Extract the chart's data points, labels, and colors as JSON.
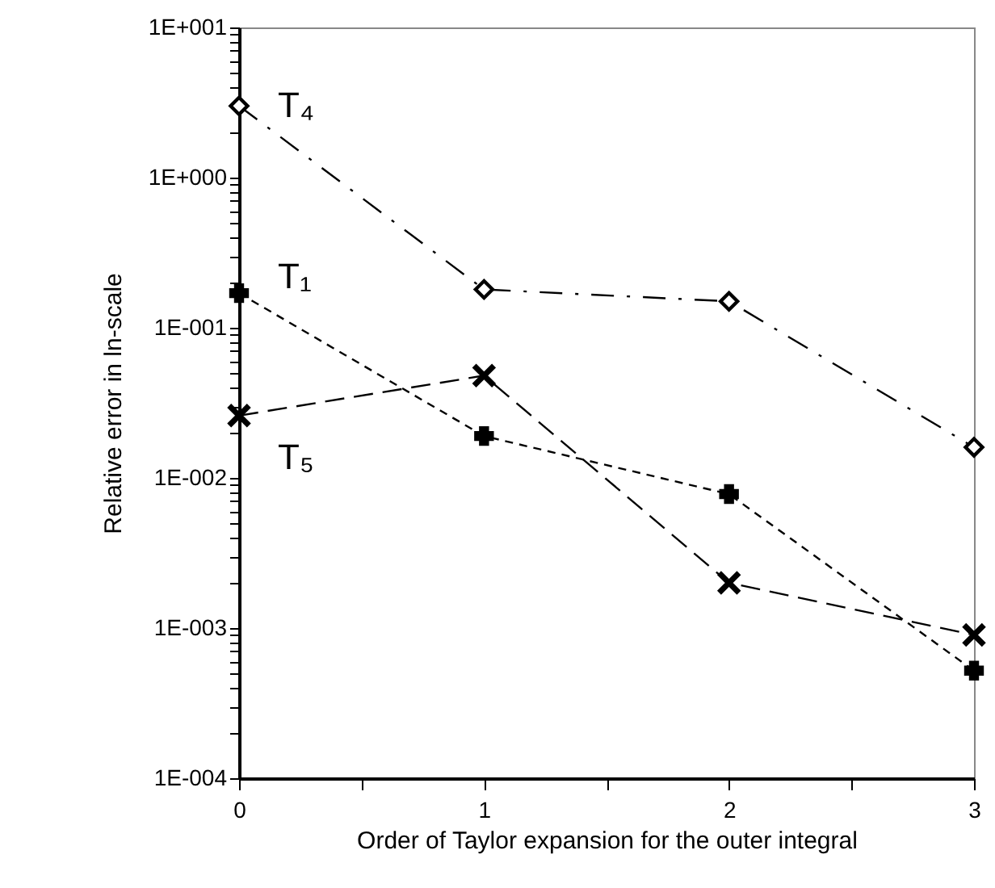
{
  "chart_data": {
    "type": "line",
    "xlabel": "Order of Taylor expansion for the outer integral",
    "ylabel": "Relative error in ln-scale",
    "log": "y",
    "grid": false,
    "x": [
      0,
      1,
      2,
      3
    ],
    "xlim": [
      0,
      3
    ],
    "xticks": [
      0,
      {
        "value": 0.5,
        "label": null
      },
      1,
      {
        "value": 1.5,
        "label": null
      },
      2,
      {
        "value": 2.5,
        "label": null
      },
      3
    ],
    "ylim": [
      0.0001,
      10
    ],
    "yticks": [
      {
        "value": 0.0001,
        "label": "1E-004"
      },
      {
        "value": 0.0002,
        "label": null
      },
      {
        "value": 0.0003,
        "label": null
      },
      {
        "value": 0.0004,
        "label": null
      },
      {
        "value": 0.0005,
        "label": null
      },
      {
        "value": 0.0006,
        "label": null
      },
      {
        "value": 0.0007,
        "label": null
      },
      {
        "value": 0.0008,
        "label": null
      },
      {
        "value": 0.0009,
        "label": null
      },
      {
        "value": 0.001,
        "label": "1E-003"
      },
      {
        "value": 0.002,
        "label": null
      },
      {
        "value": 0.003,
        "label": null
      },
      {
        "value": 0.004,
        "label": null
      },
      {
        "value": 0.005,
        "label": null
      },
      {
        "value": 0.006,
        "label": null
      },
      {
        "value": 0.007,
        "label": null
      },
      {
        "value": 0.008,
        "label": null
      },
      {
        "value": 0.009,
        "label": null
      },
      {
        "value": 0.01,
        "label": "1E-002"
      },
      {
        "value": 0.02,
        "label": null
      },
      {
        "value": 0.03,
        "label": null
      },
      {
        "value": 0.04,
        "label": null
      },
      {
        "value": 0.05,
        "label": null
      },
      {
        "value": 0.06,
        "label": null
      },
      {
        "value": 0.07,
        "label": null
      },
      {
        "value": 0.08,
        "label": null
      },
      {
        "value": 0.09,
        "label": null
      },
      {
        "value": 0.1,
        "label": "1E-001"
      },
      {
        "value": 0.2,
        "label": null
      },
      {
        "value": 0.3,
        "label": null
      },
      {
        "value": 0.4,
        "label": null
      },
      {
        "value": 0.5,
        "label": null
      },
      {
        "value": 0.6,
        "label": null
      },
      {
        "value": 0.7,
        "label": null
      },
      {
        "value": 0.8,
        "label": null
      },
      {
        "value": 0.9,
        "label": null
      },
      {
        "value": 1,
        "label": "1E+000"
      },
      {
        "value": 2,
        "label": null
      },
      {
        "value": 3,
        "label": null
      },
      {
        "value": 4,
        "label": null
      },
      {
        "value": 5,
        "label": null
      },
      {
        "value": 6,
        "label": null
      },
      {
        "value": 7,
        "label": null
      },
      {
        "value": 8,
        "label": null
      },
      {
        "value": 9,
        "label": null
      },
      {
        "value": 10,
        "label": "1E+001"
      }
    ],
    "series": [
      {
        "name": "T₄",
        "color": "#000000",
        "marker": "diamond",
        "line_style": "dashdot",
        "values": [
          3,
          0.18,
          0.15,
          0.016
        ]
      },
      {
        "name": "T₁",
        "color": "#000000",
        "marker": "cross",
        "line_style": "dotted",
        "values": [
          0.17,
          0.019,
          0.0078,
          0.00052
        ]
      },
      {
        "name": "T₅",
        "color": "#000000",
        "marker": "x",
        "line_style": "dashed",
        "values": [
          0.026,
          0.048,
          0.002,
          0.0009
        ]
      }
    ]
  }
}
